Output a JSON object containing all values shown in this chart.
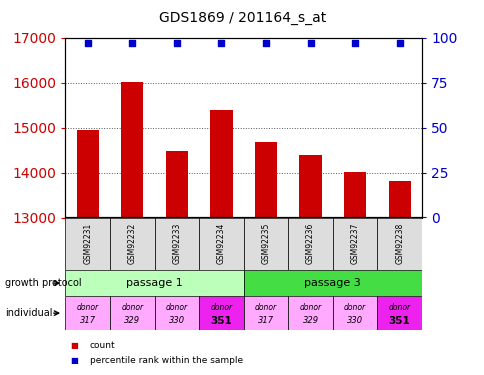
{
  "title": "GDS1869 / 201164_s_at",
  "samples": [
    "GSM92231",
    "GSM92232",
    "GSM92233",
    "GSM92234",
    "GSM92235",
    "GSM92236",
    "GSM92237",
    "GSM92238"
  ],
  "counts": [
    14950,
    16020,
    14480,
    15380,
    14680,
    14380,
    14020,
    13820
  ],
  "ylim_left": [
    13000,
    17000
  ],
  "ylim_right": [
    0,
    100
  ],
  "yticks_left": [
    13000,
    14000,
    15000,
    16000,
    17000
  ],
  "yticks_right": [
    0,
    25,
    50,
    75,
    100
  ],
  "bar_color": "#cc0000",
  "dot_color": "#0000cc",
  "bar_baseline": 13000,
  "passage_1_color": "#bbffbb",
  "passage_3_color": "#44dd44",
  "individual_colors": [
    "#ffaaff",
    "#ffaaff",
    "#ffaaff",
    "#ee22ee",
    "#ffaaff",
    "#ffaaff",
    "#ffaaff",
    "#ee22ee"
  ],
  "individuals_top": [
    "donor",
    "donor",
    "donor",
    "donor",
    "donor",
    "donor",
    "donor",
    "donor"
  ],
  "individuals_bottom": [
    "317",
    "329",
    "330",
    "351",
    "317",
    "329",
    "330",
    "351"
  ],
  "growth_protocol_label": "growth protocol",
  "individual_label": "individual",
  "legend_count": "count",
  "legend_percentile": "percentile rank within the sample",
  "grid_color": "#555555",
  "background_color": "#ffffff",
  "title_fontsize": 10,
  "tick_label_color_left": "#cc0000",
  "tick_label_color_right": "#0000cc",
  "sample_box_color": "#dddddd",
  "percentile_value": 97
}
